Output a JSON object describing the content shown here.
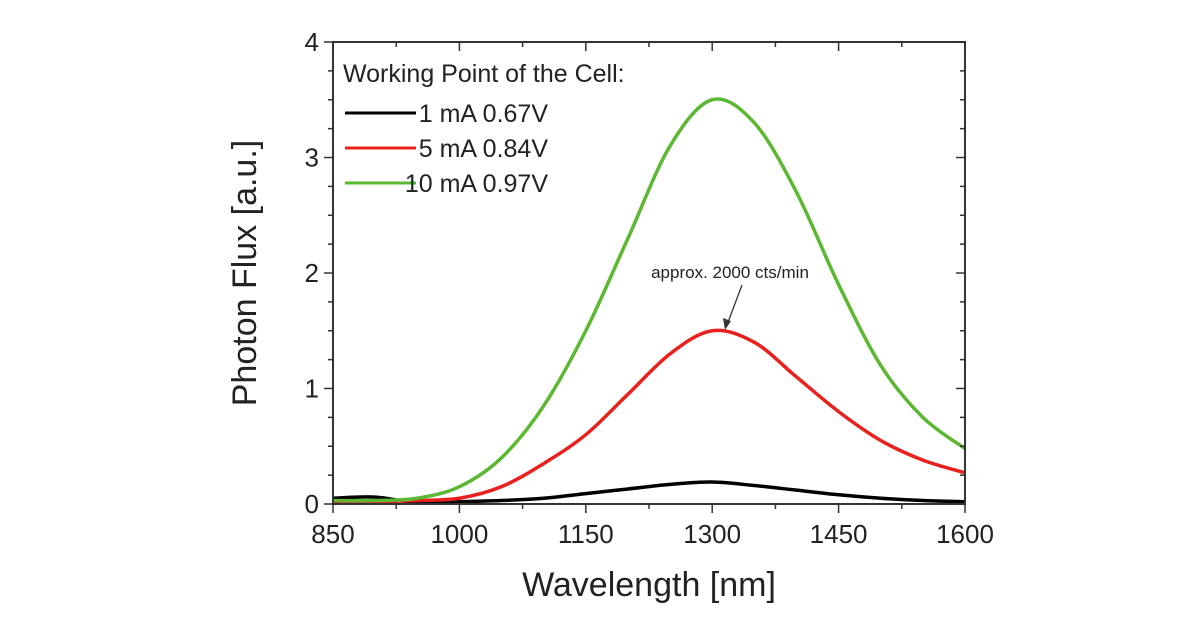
{
  "chart_data": {
    "type": "line",
    "xlabel": "Wavelength [nm]",
    "ylabel": "Photon Flux [a.u.]",
    "xlim": [
      850,
      1600
    ],
    "ylim": [
      0,
      4
    ],
    "xticks": [
      850,
      1000,
      1150,
      1300,
      1450,
      1600
    ],
    "yticks": [
      0,
      1,
      2,
      3,
      4
    ],
    "grid": false,
    "legend": {
      "title": "Working Point of the Cell:",
      "placement": "top-left"
    },
    "annotation": {
      "text": "approx. 2000 cts/min",
      "x": 1300,
      "y": 1.5
    },
    "x": [
      850,
      900,
      950,
      1000,
      1050,
      1100,
      1150,
      1200,
      1250,
      1300,
      1350,
      1400,
      1450,
      1500,
      1550,
      1600
    ],
    "series": [
      {
        "name": "1 mA 0.67V",
        "color": "#000000",
        "values": [
          0.05,
          0.06,
          0.01,
          0.02,
          0.03,
          0.05,
          0.09,
          0.13,
          0.17,
          0.19,
          0.16,
          0.12,
          0.08,
          0.05,
          0.03,
          0.02
        ]
      },
      {
        "name": "5 mA 0.84V",
        "color": "#e8201e",
        "values": [
          0.02,
          0.02,
          0.03,
          0.05,
          0.15,
          0.35,
          0.6,
          0.95,
          1.3,
          1.5,
          1.4,
          1.1,
          0.8,
          0.55,
          0.38,
          0.27
        ]
      },
      {
        "name": "10 mA 0.97V",
        "color": "#5cb833",
        "values": [
          0.03,
          0.03,
          0.05,
          0.15,
          0.4,
          0.85,
          1.5,
          2.3,
          3.1,
          3.5,
          3.3,
          2.7,
          1.9,
          1.2,
          0.75,
          0.48
        ]
      }
    ]
  }
}
